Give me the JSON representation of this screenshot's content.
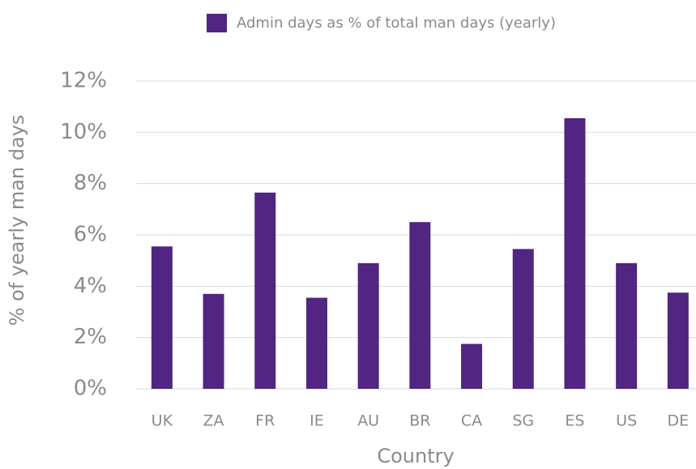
{
  "chart_data": {
    "type": "bar",
    "legend_label": "Admin days as % of total man days (yearly)",
    "x_label": "Country",
    "y_label": "% of yearly man days",
    "categories": [
      "UK",
      "ZA",
      "FR",
      "IE",
      "AU",
      "BR",
      "CA",
      "SG",
      "ES",
      "US",
      "DE"
    ],
    "values": [
      5.55,
      3.7,
      7.65,
      3.55,
      4.9,
      6.5,
      1.75,
      5.45,
      10.55,
      4.9,
      3.75
    ],
    "color": "#512581",
    "ylim": [
      0,
      12
    ],
    "yticks": [
      {
        "value": 0,
        "label": "0%"
      },
      {
        "value": 2,
        "label": "2%"
      },
      {
        "value": 4,
        "label": "4%"
      },
      {
        "value": 6,
        "label": "6%"
      },
      {
        "value": 8,
        "label": "8%"
      },
      {
        "value": 10,
        "label": "10%"
      },
      {
        "value": 12,
        "label": "12%"
      }
    ],
    "grid": true
  }
}
